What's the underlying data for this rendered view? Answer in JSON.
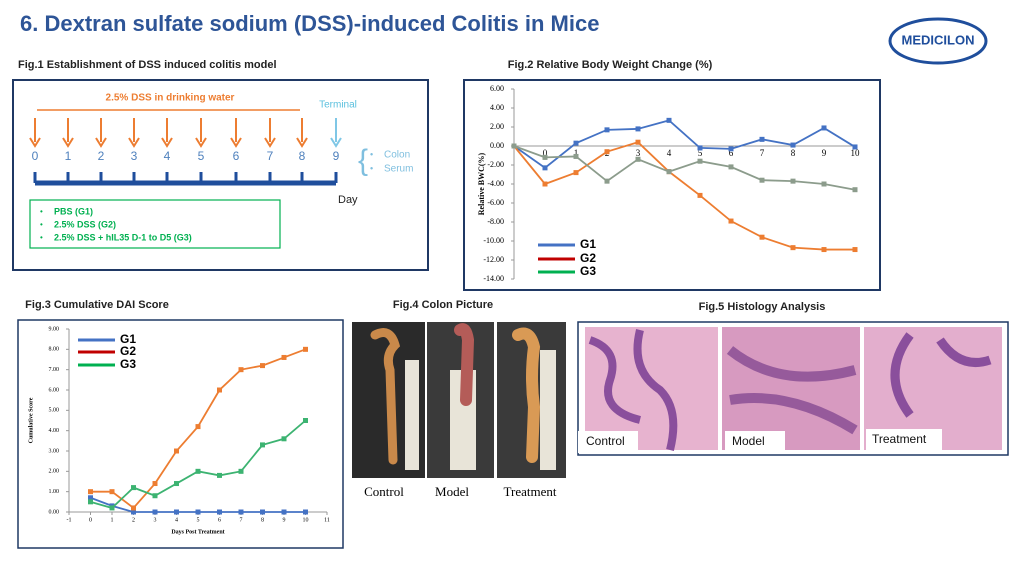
{
  "title": "6. Dextran sulfate sodium (DSS)-induced Colitis in Mice",
  "logo": "MEDICILON",
  "fig1": {
    "heading": "Fig.1 Establishment of DSS induced colitis model",
    "treatment": "2.5% DSS in drinking water",
    "terminal": "Terminal",
    "days": [
      "0",
      "1",
      "2",
      "3",
      "4",
      "5",
      "6",
      "7",
      "8",
      "9"
    ],
    "samples": [
      "Colon",
      "Serum"
    ],
    "axis_label": "Day",
    "groups": [
      "PBS (G1)",
      "2.5% DSS (G2)",
      "2.5% DSS + hIL35 D-1 to D5 (G3)"
    ]
  },
  "chart_data": [
    {
      "type": "line",
      "title": "Fig.2 Relative Body Weight Change (%)",
      "ylabel": "Relative BWC(%)",
      "categories": [
        null,
        "0",
        "1",
        "2",
        "3",
        "4",
        "5",
        "6",
        "7",
        "8",
        "9",
        "10"
      ],
      "ylim": [
        -14,
        6
      ],
      "yticks": [
        {
          "value": 6,
          "label": "6.00"
        },
        {
          "value": 4,
          "label": "4.00"
        },
        {
          "value": 2,
          "label": "2.00"
        },
        {
          "value": 0,
          "label": "0.00"
        },
        {
          "value": -2,
          "label": "-2.00"
        },
        {
          "value": -4,
          "label": "-4.00"
        },
        {
          "value": -6,
          "label": "-6.00"
        },
        {
          "value": -8,
          "label": "-8.00"
        },
        {
          "value": -10,
          "label": "-10.00"
        },
        {
          "value": -12,
          "label": "-12.00"
        },
        {
          "value": -14,
          "label": "-14.00"
        }
      ],
      "series": [
        {
          "name": "G1",
          "color": "#4472c4",
          "values": [
            0,
            -2.3,
            0.3,
            1.7,
            1.8,
            2.7,
            -0.2,
            -0.3,
            0.7,
            0.1,
            1.9,
            -0.1
          ]
        },
        {
          "name": "G2",
          "color": "#ed7d31",
          "values": [
            0,
            -4.0,
            -2.8,
            -0.6,
            0.4,
            -2.7,
            -5.2,
            -7.9,
            -9.6,
            -10.7,
            -10.9,
            -10.9
          ]
        },
        {
          "name": "G3",
          "color": "#8c9c8c",
          "values": [
            0,
            -1.2,
            -1.1,
            -3.7,
            -1.4,
            -2.7,
            -1.6,
            -2.2,
            -3.6,
            -3.7,
            -4.0,
            -4.6
          ]
        }
      ],
      "legend_colors": [
        "#4472c4",
        "#c00000",
        "#00b050"
      ]
    },
    {
      "type": "line",
      "title": "Fig.3 Cumulative DAI Score",
      "xlabel": "Days Post Treatment",
      "ylabel": "Cumulative Score",
      "x": [
        0,
        1,
        2,
        3,
        4,
        5,
        6,
        7,
        8,
        9,
        10
      ],
      "xlim": [
        -1,
        11
      ],
      "xticks": [
        -1,
        0,
        1,
        2,
        3,
        4,
        5,
        6,
        7,
        8,
        9,
        10,
        11
      ],
      "ylim": [
        0,
        9
      ],
      "yticks": [
        {
          "value": 0,
          "label": "0.00"
        },
        {
          "value": 1,
          "label": "1.00"
        },
        {
          "value": 2,
          "label": "2.00"
        },
        {
          "value": 3,
          "label": "3.00"
        },
        {
          "value": 4,
          "label": "4.00"
        },
        {
          "value": 5,
          "label": "5.00"
        },
        {
          "value": 6,
          "label": "6.00"
        },
        {
          "value": 7,
          "label": "7.00"
        },
        {
          "value": 8,
          "label": "8.00"
        },
        {
          "value": 9,
          "label": "9.00"
        }
      ],
      "series": [
        {
          "name": "G1",
          "color": "#4472c4",
          "values": [
            0.7,
            0.3,
            0,
            0,
            0,
            0,
            0,
            0,
            0,
            0,
            0
          ]
        },
        {
          "name": "G2",
          "color": "#ed7d31",
          "values": [
            1.0,
            1.0,
            0.2,
            1.4,
            3.0,
            4.2,
            6.0,
            7.0,
            7.2,
            7.6,
            8.0
          ]
        },
        {
          "name": "G3",
          "color": "#3cb371",
          "values": [
            0.5,
            0.2,
            1.2,
            0.8,
            1.4,
            2.0,
            1.8,
            2.0,
            3.3,
            3.6,
            4.5
          ]
        }
      ],
      "legend_colors": [
        "#4472c4",
        "#c00000",
        "#00b050"
      ]
    }
  ],
  "fig4": {
    "heading": "Fig.4 Colon Picture",
    "labels": [
      "Control",
      "Model",
      "Treatment"
    ]
  },
  "fig5": {
    "heading": "Fig.5 Histology Analysis",
    "labels": [
      "Control",
      "Model",
      "Treatment"
    ]
  }
}
